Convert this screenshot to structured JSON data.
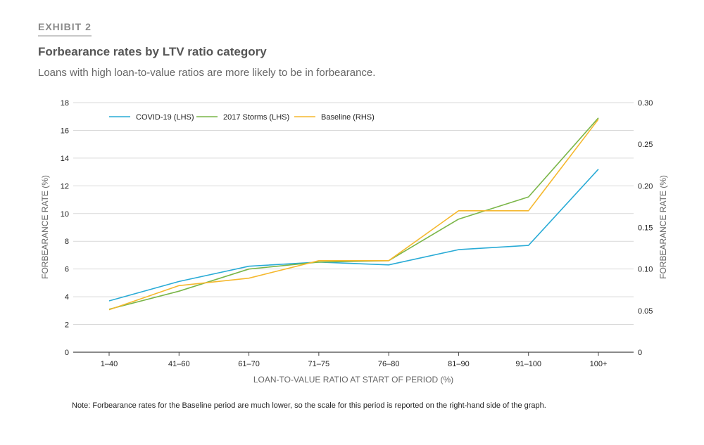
{
  "header": {
    "exhibit": "EXHIBIT 2",
    "title": "Forbearance rates by LTV ratio category",
    "subtitle": "Loans with high loan-to-value ratios are more likely to be in forbearance."
  },
  "note": "Note: Forbearance rates for the Baseline period are much lower, so the scale for this period is reported on the right-hand side of the graph.",
  "chart_data": {
    "type": "line",
    "categories": [
      "1–40",
      "41–60",
      "61–70",
      "71–75",
      "76–80",
      "81–90",
      "91–100",
      "100+"
    ],
    "xlabel": "LOAN-TO-VALUE RATIO AT START OF PERIOD (%)",
    "ylabel": "FORBEARANCE RATE (%)",
    "ylabel_right": "FORBEARANCE RATE (%)",
    "ylim": [
      0,
      18
    ],
    "yticks": [
      "0",
      "2",
      "4",
      "6",
      "8",
      "10",
      "12",
      "14",
      "16",
      "18"
    ],
    "ylim_right": [
      0,
      0.3
    ],
    "yticks_right": [
      "0",
      "0.05",
      "0.10",
      "0.15",
      "0.20",
      "0.25",
      "0.30"
    ],
    "grid": true,
    "legend_position": "top-left",
    "series": [
      {
        "name": "COVID-19 (LHS)",
        "axis": "left",
        "color": "#29abd6",
        "values": [
          3.7,
          5.1,
          6.2,
          6.5,
          6.3,
          7.4,
          7.7,
          13.2
        ]
      },
      {
        "name": "2017 Storms (LHS)",
        "axis": "left",
        "color": "#7ab648",
        "values": [
          3.1,
          4.4,
          6.0,
          6.5,
          6.6,
          9.6,
          11.2,
          16.9
        ]
      },
      {
        "name": "Baseline (RHS)",
        "axis": "right",
        "color": "#f5b82e",
        "values": [
          0.051,
          0.08,
          0.089,
          0.11,
          0.11,
          0.17,
          0.17,
          0.28
        ]
      }
    ]
  }
}
